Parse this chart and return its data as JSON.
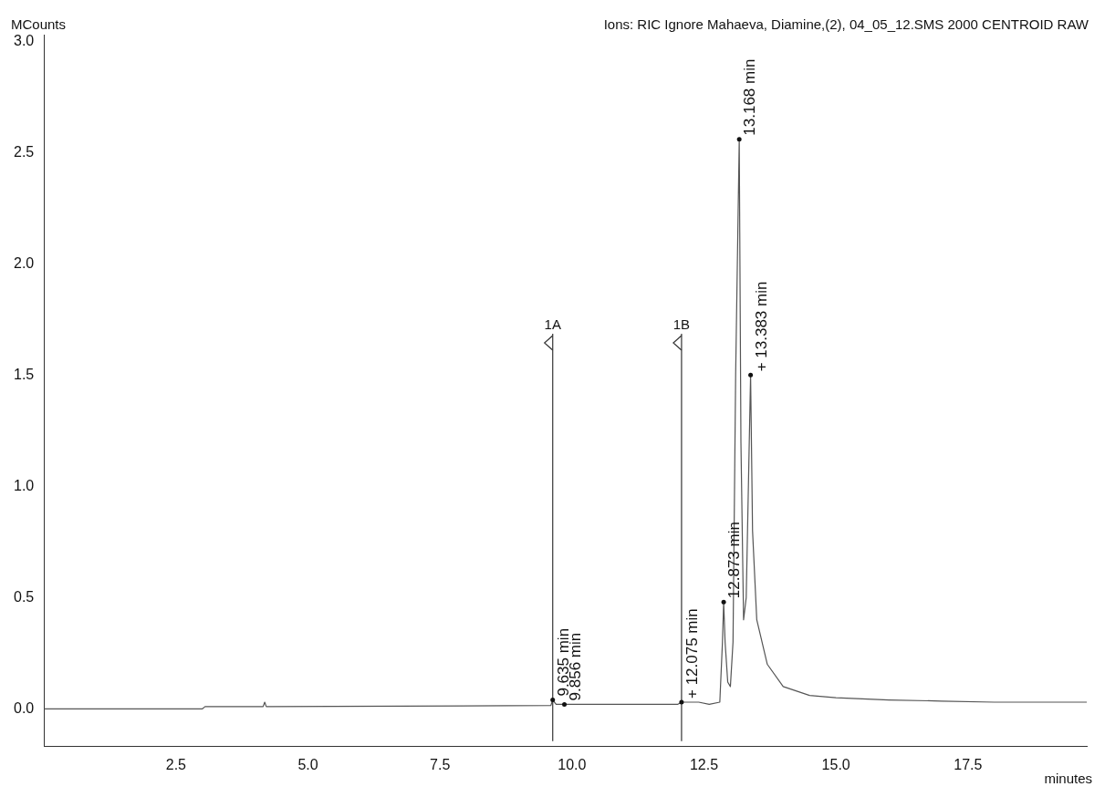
{
  "chart_data": {
    "type": "line",
    "title": "Ions: RIC Ignore Mahaeva, Diamine,(2), 04_05_12.SMS 2000 CENTROID RAW",
    "xlabel": "minutes",
    "ylabel": "MCounts",
    "x": [
      0,
      3.0,
      3.05,
      4.15,
      4.18,
      4.21,
      9.6,
      9.635,
      9.7,
      9.856,
      12.0,
      12.075,
      12.4,
      12.6,
      12.8,
      12.85,
      12.873,
      12.9,
      12.95,
      13.0,
      13.05,
      13.1,
      13.168,
      13.2,
      13.25,
      13.3,
      13.383,
      13.42,
      13.5,
      13.7,
      14.0,
      14.5,
      15.0,
      16.0,
      17.0,
      18.0,
      19.75
    ],
    "series": [
      {
        "color": "#555555",
        "values": [
          0.0,
          0.0,
          0.01,
          0.01,
          0.03,
          0.01,
          0.015,
          0.04,
          0.02,
          0.02,
          0.02,
          0.03,
          0.03,
          0.02,
          0.03,
          0.3,
          0.48,
          0.3,
          0.12,
          0.1,
          0.3,
          1.5,
          2.56,
          1.2,
          0.4,
          0.5,
          1.5,
          0.8,
          0.4,
          0.2,
          0.1,
          0.06,
          0.05,
          0.04,
          0.035,
          0.03,
          0.03
        ]
      }
    ],
    "xlim": [
      0,
      19.75
    ],
    "ylim": [
      -0.17,
      3.03
    ],
    "xticks": [
      2.5,
      {
        "value": 5,
        "label": "5.0"
      },
      7.5,
      {
        "value": 10,
        "label": "10.0"
      },
      12.5,
      {
        "value": 15,
        "label": "15.0"
      },
      17.5
    ],
    "yticks": [
      {
        "value": 0,
        "label": "0.0"
      },
      0.5,
      {
        "value": 1,
        "label": "1.0"
      },
      1.5,
      {
        "value": 2,
        "label": "2.0"
      },
      2.5,
      {
        "value": 3,
        "label": "3.0"
      }
    ],
    "ref_lines": [
      {
        "axis": "x",
        "value": 9.635,
        "label": "1A"
      },
      {
        "axis": "x",
        "value": 12.075,
        "label": "1B"
      }
    ],
    "annotations": [
      {
        "text": "9.635 min",
        "x": 9.635,
        "y": 0.04
      },
      {
        "text": "9.856 min",
        "x": 9.856,
        "y": 0.02
      },
      {
        "text": "+ 12.075 min",
        "x": 12.075,
        "y": 0.03
      },
      {
        "text": "12.873 min",
        "x": 12.873,
        "y": 0.48
      },
      {
        "text": "13.168 min",
        "x": 13.168,
        "y": 2.56
      },
      {
        "text": "+ 13.383 min",
        "x": 13.383,
        "y": 1.5
      }
    ],
    "grid": false,
    "legend": false,
    "marker": "none",
    "line_style": "solid"
  }
}
